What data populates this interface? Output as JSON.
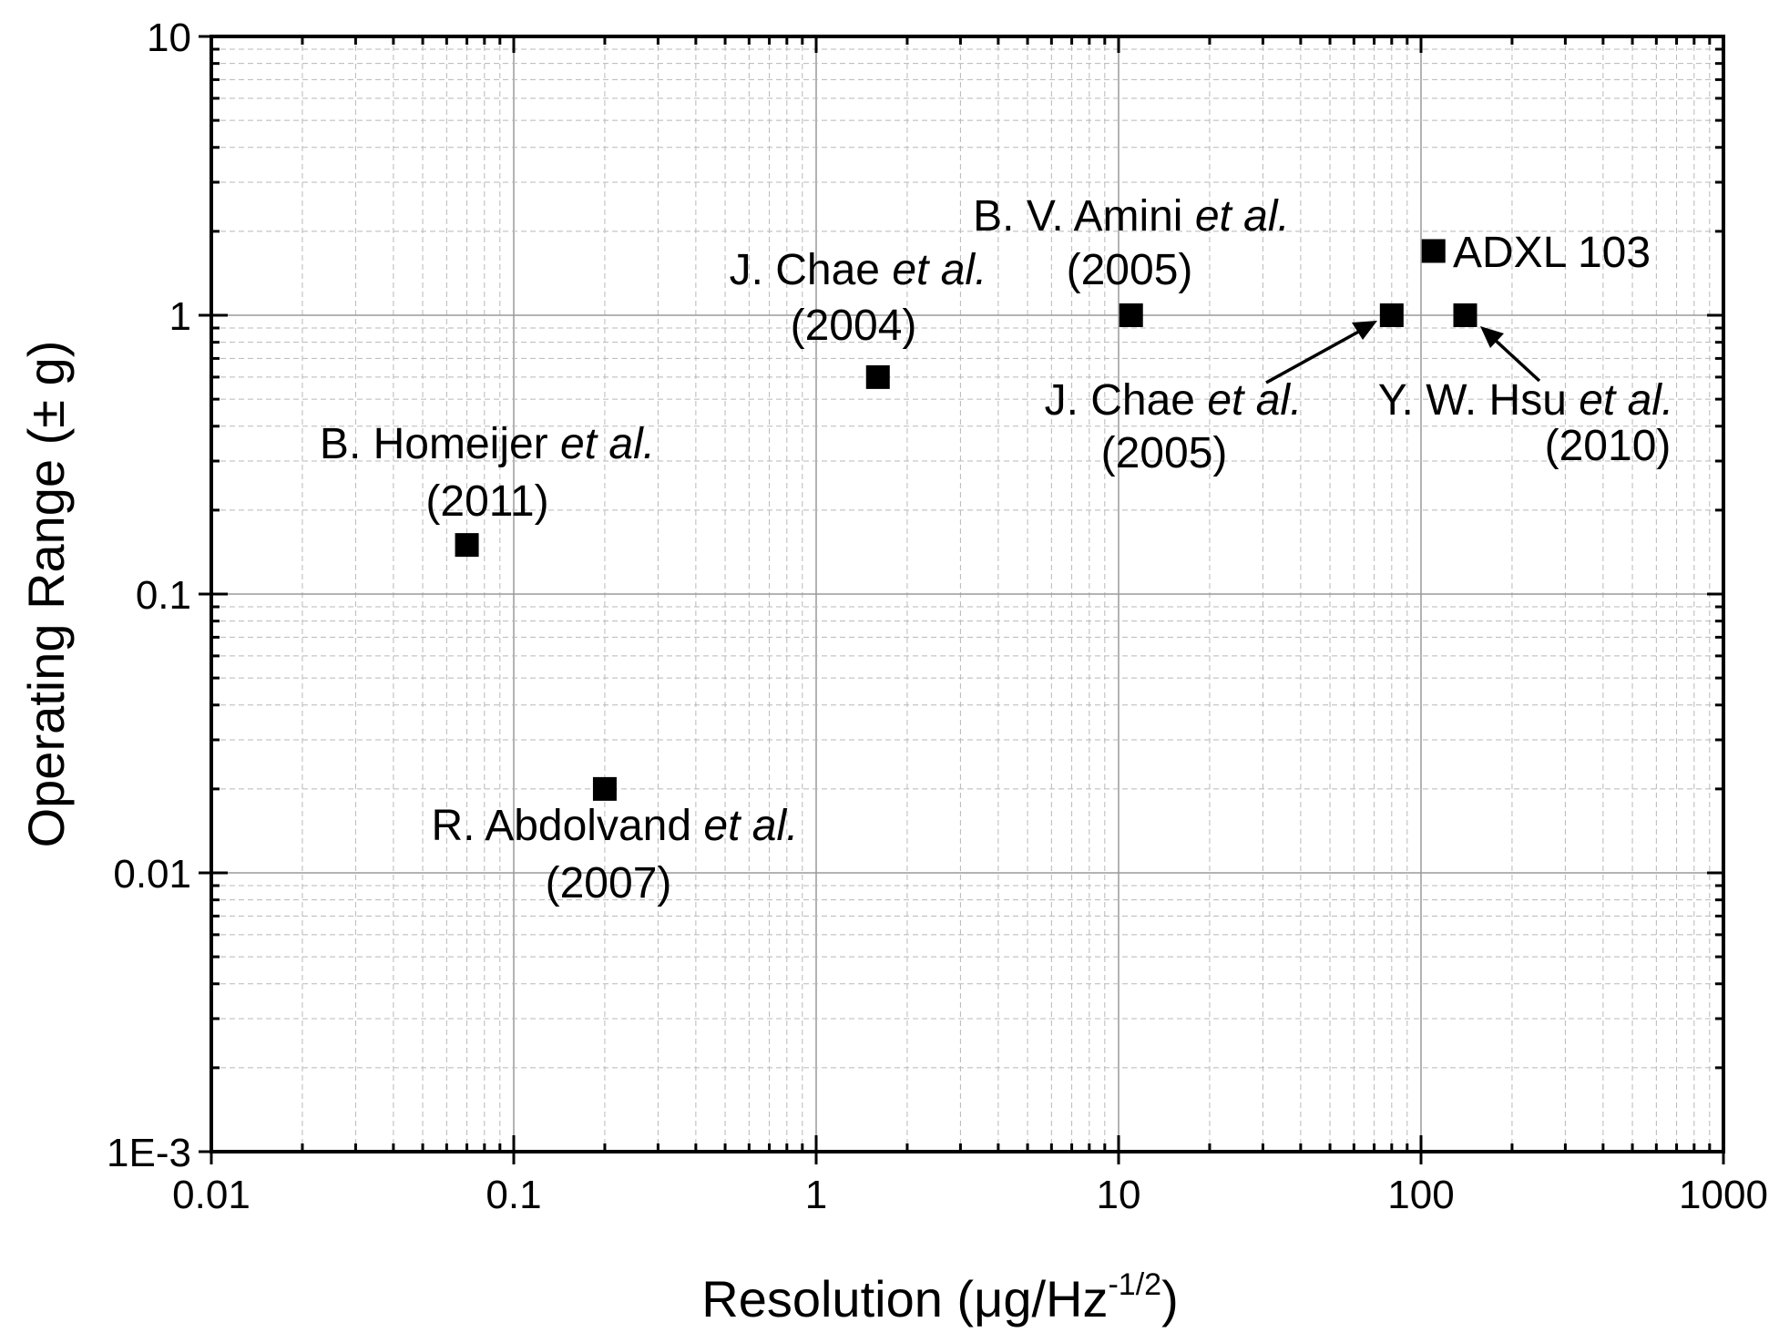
{
  "chart_data": {
    "type": "scatter",
    "xscale": "log",
    "yscale": "log",
    "xlabel": "Resolution (μg/Hz",
    "xlabel_sup": "-1/2",
    "xlabel_end": ")",
    "ylabel": "Operating Range (± g)",
    "xlim": [
      0.01,
      1000
    ],
    "ylim": [
      0.001,
      10
    ],
    "grid": true,
    "x_ticks": [
      {
        "value": 0.01,
        "label": "0.01"
      },
      {
        "value": 0.1,
        "label": "0.1"
      },
      {
        "value": 1,
        "label": "1"
      },
      {
        "value": 10,
        "label": "10"
      },
      {
        "value": 100,
        "label": "100"
      },
      {
        "value": 1000,
        "label": "1000"
      }
    ],
    "y_ticks": [
      {
        "value": 0.001,
        "label": "1E-3"
      },
      {
        "value": 0.01,
        "label": "0.01"
      },
      {
        "value": 0.1,
        "label": "0.1"
      },
      {
        "value": 1,
        "label": "1"
      },
      {
        "value": 10,
        "label": "10"
      }
    ],
    "points": [
      {
        "id": "homeijer",
        "x": 0.07,
        "y": 0.15,
        "name": "B. Homeijer",
        "etal": "et al.",
        "year": "(2011)"
      },
      {
        "id": "abdolvand",
        "x": 0.2,
        "y": 0.02,
        "name": "R. Abdolvand",
        "etal": "et al.",
        "year": "(2007)"
      },
      {
        "id": "chae2004",
        "x": 1.6,
        "y": 0.6,
        "name": "J. Chae",
        "etal": "et al.",
        "year": "(2004)"
      },
      {
        "id": "amini",
        "x": 11,
        "y": 1.0,
        "name": "B. V. Amini",
        "etal": "et al.",
        "year": "(2005)"
      },
      {
        "id": "chae2005",
        "x": 80,
        "y": 1.0,
        "name": "J. Chae",
        "etal": "et al.",
        "year": "(2005)"
      },
      {
        "id": "hsu",
        "x": 140,
        "y": 1.0,
        "name": "Y. W. Hsu",
        "etal": "et al.",
        "year": "(2010)"
      },
      {
        "id": "adxl",
        "x": 110,
        "y": 1.7,
        "name": "ADXL 103",
        "etal": "",
        "year": ""
      }
    ]
  }
}
